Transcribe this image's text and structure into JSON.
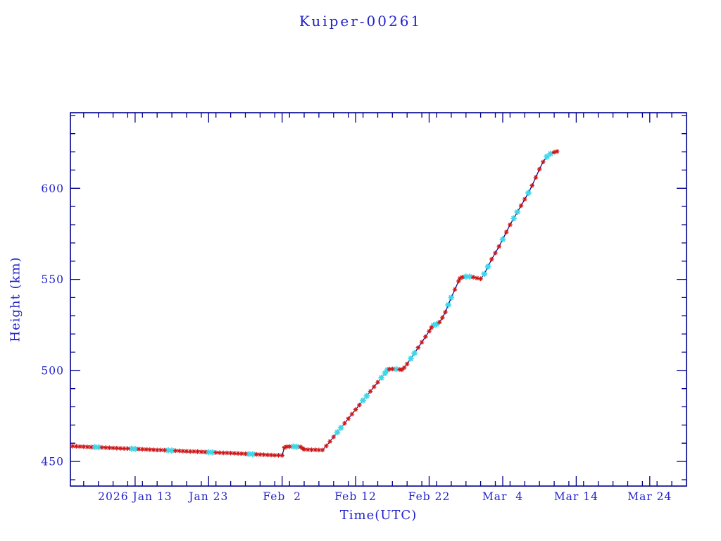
{
  "figure": {
    "background": "#ffffff"
  },
  "chart_data": {
    "type": "line",
    "title": "Kuiper-00261",
    "xlabel": "Time(UTC)",
    "ylabel": "Height (km)",
    "x_unit": "day_of_year_2026",
    "xlim": [
      4.2,
      88.0
    ],
    "ylim": [
      436.5,
      641.5
    ],
    "x_ticks": [
      {
        "value": 13,
        "label": "2026 Jan 13"
      },
      {
        "value": 23,
        "label": "Jan 23"
      },
      {
        "value": 33,
        "label": "Feb  2"
      },
      {
        "value": 43,
        "label": "Feb 12"
      },
      {
        "value": 53,
        "label": "Feb 22"
      },
      {
        "value": 63,
        "label": "Mar  4"
      },
      {
        "value": 73,
        "label": "Mar 14"
      },
      {
        "value": 83,
        "label": "Mar 24"
      }
    ],
    "y_ticks": [
      {
        "value": 450,
        "label": "450"
      },
      {
        "value": 500,
        "label": "500"
      },
      {
        "value": 550,
        "label": "550"
      },
      {
        "value": 600,
        "label": "600"
      }
    ],
    "x_minor_step": 2,
    "y_minor_step": 10,
    "grid": false,
    "legend": "none",
    "frame_color": "#00008b",
    "line_color": "#00008b",
    "marker_color_primary": "#d01515",
    "marker_color_secondary": "#3fd6e8",
    "text_color": "#2222cc",
    "series": [
      {
        "name": "height_km",
        "points": [
          [
            4.5,
            458.4
          ],
          [
            5,
            458.3
          ],
          [
            5.5,
            458.2
          ],
          [
            6,
            458.1
          ],
          [
            6.5,
            458
          ],
          [
            7,
            457.9
          ],
          [
            7.5,
            457.9
          ],
          [
            8,
            457.8
          ],
          [
            8.5,
            457.7
          ],
          [
            9,
            457.6
          ],
          [
            9.5,
            457.5
          ],
          [
            10,
            457.4
          ],
          [
            10.5,
            457.3
          ],
          [
            11,
            457.2
          ],
          [
            11.5,
            457.1
          ],
          [
            12,
            457.1
          ],
          [
            12.5,
            457
          ],
          [
            13,
            456.9
          ],
          [
            13.5,
            456.8
          ],
          [
            14,
            456.7
          ],
          [
            14.5,
            456.6
          ],
          [
            15,
            456.5
          ],
          [
            15.5,
            456.4
          ],
          [
            16,
            456.3
          ],
          [
            16.5,
            456.3
          ],
          [
            17,
            456.2
          ],
          [
            17.5,
            456.1
          ],
          [
            18,
            456
          ],
          [
            18.5,
            455.9
          ],
          [
            19,
            455.8
          ],
          [
            19.5,
            455.7
          ],
          [
            20,
            455.6
          ],
          [
            20.5,
            455.5
          ],
          [
            21,
            455.5
          ],
          [
            21.5,
            455.4
          ],
          [
            22,
            455.3
          ],
          [
            22.5,
            455.2
          ],
          [
            23,
            455.1
          ],
          [
            23.5,
            455
          ],
          [
            24,
            454.9
          ],
          [
            24.5,
            454.8
          ],
          [
            25,
            454.7
          ],
          [
            25.5,
            454.7
          ],
          [
            26,
            454.6
          ],
          [
            26.5,
            454.5
          ],
          [
            27,
            454.4
          ],
          [
            27.5,
            454.3
          ],
          [
            28,
            454.2
          ],
          [
            28.5,
            454.1
          ],
          [
            29,
            454
          ],
          [
            29.5,
            453.9
          ],
          [
            30,
            453.8
          ],
          [
            30.5,
            453.7
          ],
          [
            31,
            453.6
          ],
          [
            31.5,
            453.5
          ],
          [
            32,
            453.4
          ],
          [
            32.5,
            453.4
          ],
          [
            33,
            453.3
          ],
          [
            33.3,
            457.6
          ],
          [
            33.6,
            458.1
          ],
          [
            34,
            458.2
          ],
          [
            34.5,
            458.2
          ],
          [
            35,
            458.1
          ],
          [
            35.5,
            458
          ],
          [
            35.8,
            457.2
          ],
          [
            36,
            456.6
          ],
          [
            36.5,
            456.5
          ],
          [
            37,
            456.4
          ],
          [
            37.5,
            456.4
          ],
          [
            38,
            456.3
          ],
          [
            38.5,
            456.3
          ],
          [
            39,
            458.5
          ],
          [
            39.5,
            461
          ],
          [
            40,
            463.5
          ],
          [
            40.5,
            466
          ],
          [
            41,
            468.5
          ],
          [
            41.5,
            471
          ],
          [
            42,
            473.5
          ],
          [
            42.5,
            476
          ],
          [
            43,
            478.5
          ],
          [
            43.5,
            481
          ],
          [
            44,
            483.5
          ],
          [
            44.5,
            486
          ],
          [
            45,
            488.5
          ],
          [
            45.5,
            491
          ],
          [
            46,
            493.5
          ],
          [
            46.5,
            496
          ],
          [
            47,
            498.5
          ],
          [
            47.3,
            500.2
          ],
          [
            47.6,
            500.7
          ],
          [
            48,
            500.8
          ],
          [
            48.5,
            500.7
          ],
          [
            49,
            500.5
          ],
          [
            49.3,
            500.4
          ],
          [
            49.6,
            501.5
          ],
          [
            50,
            503.5
          ],
          [
            50.5,
            506.5
          ],
          [
            51,
            509.5
          ],
          [
            51.5,
            512.5
          ],
          [
            52,
            515.5
          ],
          [
            52.5,
            518.5
          ],
          [
            53,
            521.5
          ],
          [
            53.3,
            523.5
          ],
          [
            53.6,
            524.8
          ],
          [
            54,
            525.4
          ],
          [
            54.4,
            526.5
          ],
          [
            54.8,
            529
          ],
          [
            55.2,
            532
          ],
          [
            55.6,
            536
          ],
          [
            56,
            540
          ],
          [
            56.5,
            544.5
          ],
          [
            57,
            549
          ],
          [
            57.2,
            550.6
          ],
          [
            57.5,
            551.2
          ],
          [
            58,
            551.5
          ],
          [
            58.5,
            551.5
          ],
          [
            59,
            551.2
          ],
          [
            59.5,
            550.7
          ],
          [
            60,
            550.3
          ],
          [
            60.5,
            553
          ],
          [
            61,
            557
          ],
          [
            61.5,
            561
          ],
          [
            62,
            564.5
          ],
          [
            62.5,
            568
          ],
          [
            63,
            572
          ],
          [
            63.5,
            576
          ],
          [
            64,
            580
          ],
          [
            64.5,
            583.5
          ],
          [
            65,
            587
          ],
          [
            65.5,
            590.5
          ],
          [
            66,
            594
          ],
          [
            66.5,
            597.5
          ],
          [
            67,
            601.5
          ],
          [
            67.5,
            606
          ],
          [
            68,
            610.5
          ],
          [
            68.5,
            614.5
          ],
          [
            69,
            617.3
          ],
          [
            69.5,
            619
          ],
          [
            70,
            619.8
          ],
          [
            70.4,
            620.2
          ]
        ],
        "cyan_ranges": [
          [
            7.3,
            8.2
          ],
          [
            12.3,
            13.2
          ],
          [
            17.3,
            18.2
          ],
          [
            22.8,
            23.7
          ],
          [
            28.3,
            29.2
          ],
          [
            34.3,
            35.2
          ],
          [
            40.3,
            41.2
          ],
          [
            43.8,
            44.6
          ],
          [
            46.3,
            47.4
          ],
          [
            48.4,
            48.9
          ],
          [
            50.3,
            51.2
          ],
          [
            53.4,
            54.1
          ],
          [
            55.5,
            56.1
          ],
          [
            57.9,
            58.6
          ],
          [
            60.3,
            61.2
          ],
          [
            62.8,
            63.2
          ],
          [
            64.3,
            65.2
          ],
          [
            66.3,
            66.7
          ],
          [
            68.9,
            69.6
          ]
        ]
      }
    ]
  }
}
